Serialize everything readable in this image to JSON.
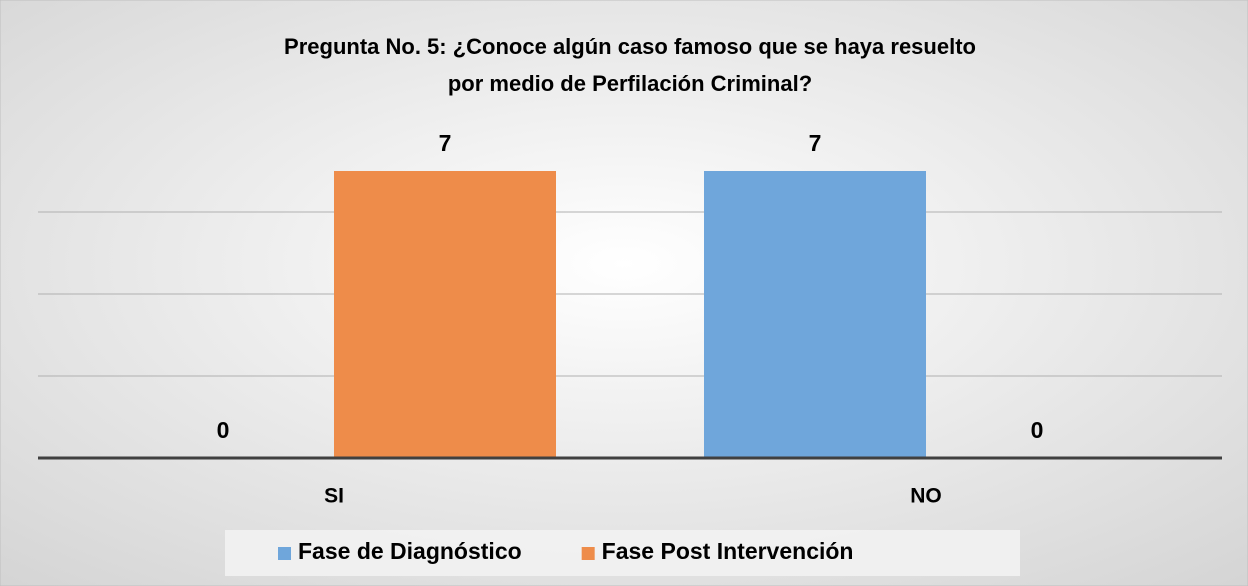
{
  "chart_data": {
    "type": "bar",
    "title": [
      "Pregunta No. 5: ¿Conoce algún caso famoso que se haya resuelto",
      "por medio de Perfilación Criminal?"
    ],
    "categories": [
      "SI",
      "NO"
    ],
    "series": [
      {
        "name": "Fase de Diagnóstico",
        "color": "#6fa6db",
        "values": [
          0,
          7
        ]
      },
      {
        "name": "Fase Post Intervención",
        "color": "#ee8c4a",
        "values": [
          7,
          0
        ]
      }
    ],
    "ylim": [
      0,
      8
    ],
    "yticks": [
      0,
      2,
      4,
      6
    ],
    "grid": true,
    "show_ytick_labels": false,
    "legend": "bottom"
  }
}
